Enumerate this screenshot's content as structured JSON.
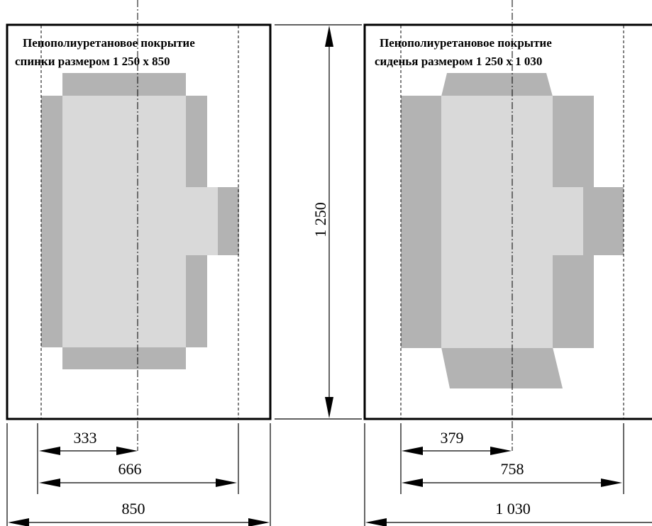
{
  "left_panel": {
    "title_line1": "Пенополиуретановое покрытие",
    "title_line2": "спинки размером 1 250 x 850",
    "dim_half": "333",
    "dim_inner": "666",
    "dim_total": "850"
  },
  "right_panel": {
    "title_line1": "Пенополиуретановое покрытие",
    "title_line2": "сиденья размером 1 250 x 1 030",
    "dim_half": "379",
    "dim_inner": "758",
    "dim_total": "1 030"
  },
  "height_dim": "1 250",
  "colors": {
    "foam_dark": "#b3b3b3",
    "foam_light": "#d9d9d9",
    "line": "#000000",
    "background": "#ffffff"
  }
}
